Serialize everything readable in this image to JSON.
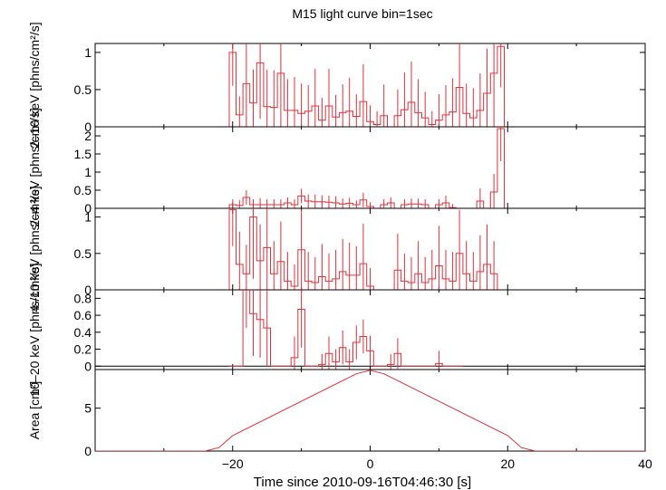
{
  "title": "M15 light curve bin=1sec",
  "xlabel": "Time since 2010-09-16T04:46:30 [s]",
  "xlim": [
    -40,
    40
  ],
  "xticks": [
    -20,
    0,
    20,
    40
  ],
  "colors": {
    "data": "#e0303a",
    "axes": "#000000",
    "zero_line": "#000000"
  },
  "chart_data": [
    {
      "type": "line",
      "name": "panel-2-10kev",
      "ylabel": "2–10 keV [phns/cm²/s]",
      "ylim": [
        0,
        1.12
      ],
      "yticks": [
        0,
        0.5,
        1
      ],
      "ytick_labels": [
        "0",
        "0.5",
        "1"
      ],
      "x": [
        -20,
        -19,
        -18,
        -17,
        -16,
        -15,
        -14,
        -13,
        -12,
        -11,
        -10,
        -9,
        -8,
        -7,
        -6,
        -5,
        -4,
        -3,
        -2,
        -1,
        0,
        1,
        2,
        3,
        4,
        5,
        6,
        7,
        8,
        9,
        10,
        11,
        12,
        13,
        14,
        15,
        16,
        17,
        18,
        19,
        20
      ],
      "values": [
        1.0,
        0.16,
        0.58,
        0.32,
        0.86,
        0.27,
        0.26,
        0.72,
        0.22,
        0.22,
        0.18,
        0.21,
        0.28,
        0.09,
        0.28,
        0.13,
        0.19,
        0.21,
        0.14,
        0.34,
        0.07,
        0.03,
        0.15,
        0.0,
        0.15,
        0.23,
        0.33,
        0.19,
        0.12,
        0.03,
        0.09,
        0.16,
        0.2,
        0.53,
        0.18,
        0.12,
        0.22,
        0.45,
        0.72,
        1.08,
        0.0
      ],
      "errors": [
        0.45,
        0.25,
        0.6,
        0.45,
        0.75,
        0.5,
        0.5,
        0.75,
        0.42,
        0.45,
        0.4,
        0.35,
        0.5,
        0.3,
        0.5,
        0.3,
        0.38,
        0.45,
        0.3,
        0.5,
        0.22,
        0.18,
        0.42,
        0.0,
        0.35,
        0.5,
        0.55,
        0.45,
        0.35,
        0.18,
        0.35,
        0.4,
        0.45,
        0.62,
        0.4,
        0.4,
        0.5,
        0.6,
        0.8,
        0.55,
        0.0
      ]
    },
    {
      "type": "line",
      "name": "panel-2-4kev",
      "ylabel": "2–4 keV [phns/cm²/s]",
      "ylim": [
        0,
        2.25
      ],
      "yticks": [
        0,
        0.5,
        1,
        1.5,
        2
      ],
      "ytick_labels": [
        "0",
        "0.5",
        "1",
        "1.5",
        "2"
      ],
      "x": [
        -20,
        -19,
        -18,
        -17,
        -16,
        -15,
        -14,
        -13,
        -12,
        -11,
        -10,
        -9,
        -8,
        -7,
        -6,
        -5,
        -4,
        -3,
        -2,
        -1,
        0,
        1,
        2,
        3,
        4,
        5,
        6,
        7,
        8,
        9,
        10,
        11,
        12,
        13,
        14,
        15,
        16,
        17,
        18,
        19,
        20
      ],
      "values": [
        0.1,
        0.08,
        0.3,
        0.1,
        0.1,
        0.1,
        0.1,
        0.1,
        0.15,
        0.1,
        0.34,
        0.2,
        0.18,
        0.18,
        0.17,
        0.15,
        0.12,
        0.14,
        0.1,
        0.23,
        0.05,
        0.0,
        0.1,
        0.15,
        0.0,
        0.1,
        0.12,
        0.12,
        0.1,
        0.0,
        0.1,
        0.15,
        0.02,
        0.0,
        0.0,
        0.0,
        0.2,
        0.0,
        0.45,
        2.2,
        0.0
      ],
      "errors": [
        0.15,
        0.15,
        0.2,
        0.15,
        0.18,
        0.15,
        0.15,
        0.15,
        0.15,
        0.15,
        0.2,
        0.18,
        0.2,
        0.18,
        0.18,
        0.18,
        0.15,
        0.15,
        0.12,
        0.2,
        0.12,
        0.0,
        0.15,
        0.15,
        0.0,
        0.15,
        0.15,
        0.15,
        0.15,
        0.0,
        0.15,
        0.2,
        0.1,
        0.0,
        0.0,
        0.0,
        0.35,
        0.0,
        0.5,
        0.9,
        0.0
      ]
    },
    {
      "type": "line",
      "name": "panel-4-10kev",
      "ylabel": "4–10 keV [phns/cm²/s]",
      "ylim": [
        0,
        1.12
      ],
      "yticks": [
        0,
        0.5,
        1
      ],
      "ytick_labels": [
        "0",
        "0.5",
        "1"
      ],
      "x": [
        -20,
        -19,
        -18,
        -17,
        -16,
        -15,
        -14,
        -13,
        -12,
        -11,
        -10,
        -9,
        -8,
        -7,
        -6,
        -5,
        -4,
        -3,
        -2,
        -1,
        0,
        1,
        2,
        3,
        4,
        5,
        6,
        7,
        8,
        9,
        10,
        11,
        12,
        13,
        14,
        15,
        16,
        17,
        18,
        19,
        20
      ],
      "values": [
        1.1,
        0.35,
        0.22,
        1.0,
        0.4,
        0.58,
        0.22,
        0.39,
        0.12,
        0.05,
        0.55,
        0.12,
        0.1,
        0.18,
        0.12,
        0.15,
        0.25,
        0.2,
        0.2,
        0.36,
        0.05,
        0.0,
        0.0,
        0.0,
        0.27,
        0.12,
        0.1,
        0.22,
        0.1,
        0.15,
        0.33,
        0.15,
        0.12,
        0.5,
        0.22,
        0.12,
        0.25,
        0.35,
        0.22,
        0.0,
        0.0
      ],
      "errors": [
        0.5,
        0.45,
        0.4,
        0.85,
        0.5,
        0.6,
        0.45,
        0.55,
        0.4,
        0.3,
        0.55,
        0.4,
        0.35,
        0.45,
        0.38,
        0.4,
        0.45,
        0.45,
        0.4,
        0.55,
        0.25,
        0.0,
        0.0,
        0.0,
        0.5,
        0.38,
        0.35,
        0.45,
        0.35,
        0.4,
        0.55,
        0.4,
        0.4,
        0.6,
        0.45,
        0.4,
        0.5,
        0.55,
        0.45,
        0.0,
        0.0
      ]
    },
    {
      "type": "line",
      "name": "panel-10-20kev",
      "ylabel": "10–20 keV [phns/cm²/s]",
      "ylim": [
        -0.04,
        0.9
      ],
      "yticks": [
        0,
        0.2,
        0.4,
        0.6,
        0.8
      ],
      "ytick_labels": [
        "0",
        "0.2",
        "0.4",
        "0.6",
        "0.8"
      ],
      "x": [
        -20,
        -19,
        -18,
        -17,
        -16,
        -15,
        -14,
        -13,
        -12,
        -11,
        -10,
        -9,
        -8,
        -7,
        -6,
        -5,
        -4,
        -3,
        -2,
        -1,
        0,
        1,
        2,
        3,
        4,
        5,
        6,
        7,
        8,
        9,
        10,
        11,
        12,
        13
      ],
      "values": [
        0.0,
        0.0,
        0.95,
        0.62,
        0.55,
        0.45,
        0.0,
        0.0,
        0.0,
        0.1,
        0.67,
        0.0,
        0.0,
        0.02,
        0.15,
        0.05,
        0.22,
        0.05,
        0.28,
        0.35,
        0.18,
        0.0,
        0.0,
        0.02,
        0.15,
        0.0,
        0.0,
        0.0,
        0.0,
        0.0,
        0.03,
        0.0,
        0.0,
        0.0
      ],
      "errors": [
        0.0,
        0.0,
        0.5,
        0.5,
        0.45,
        0.45,
        0.0,
        0.0,
        0.0,
        0.25,
        0.45,
        0.0,
        0.0,
        0.12,
        0.2,
        0.15,
        0.2,
        0.15,
        0.2,
        0.2,
        0.18,
        0.0,
        0.0,
        0.12,
        0.18,
        0.0,
        0.0,
        0.0,
        0.0,
        0.0,
        0.15,
        0.0,
        0.0,
        0.0
      ]
    },
    {
      "type": "line",
      "name": "panel-area",
      "ylabel": "Area [cm²]",
      "ylim": [
        0,
        9.5
      ],
      "yticks": [
        0,
        5
      ],
      "ytick_labels": [
        "0",
        "5"
      ],
      "x": [
        -40,
        -24,
        -22,
        -20,
        -2,
        0,
        2,
        20,
        22,
        24,
        40
      ],
      "values": [
        0,
        0,
        0.4,
        1.8,
        9.0,
        9.4,
        9.0,
        1.8,
        0.4,
        0,
        0
      ]
    }
  ]
}
